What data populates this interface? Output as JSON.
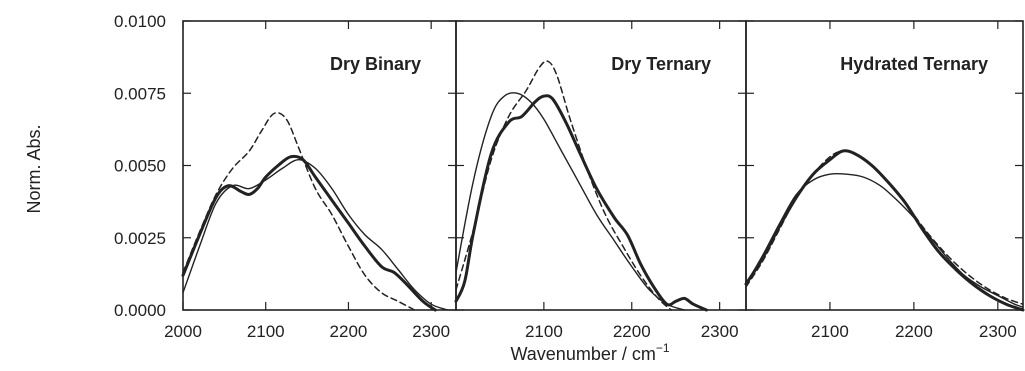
{
  "chart_data": {
    "type": "line",
    "ylabel": "Norm. Abs.",
    "xlabel": "Wavenumber / cm",
    "xlabel_sup": "−1",
    "ylim": [
      0,
      0.01
    ],
    "y_ticks": [
      "0.0000",
      "0.0025",
      "0.0050",
      "0.0075",
      "0.0100"
    ],
    "grid": false,
    "panels": [
      {
        "title": "Dry Binary",
        "xlim": [
          2000,
          2330
        ],
        "x_ticks": [
          "2000",
          "2100",
          "2200",
          "2300"
        ],
        "series": [
          {
            "style": "thin",
            "x": [
              2000,
              2020,
              2040,
              2060,
              2080,
              2100,
              2120,
              2140,
              2160,
              2180,
              2200,
              2220,
              2240,
              2260,
              2280,
              2300,
              2320
            ],
            "y": [
              0.0006,
              0.0022,
              0.0037,
              0.0043,
              0.0042,
              0.0045,
              0.0049,
              0.0052,
              0.0049,
              0.0042,
              0.0033,
              0.0026,
              0.0021,
              0.0014,
              0.0007,
              0.0002,
              0.0
            ]
          },
          {
            "style": "thick",
            "x": [
              2000,
              2020,
              2040,
              2055,
              2070,
              2080,
              2090,
              2100,
              2115,
              2130,
              2145,
              2160,
              2180,
              2200,
              2220,
              2240,
              2255,
              2270,
              2290,
              2305
            ],
            "y": [
              0.0012,
              0.0026,
              0.0039,
              0.0043,
              0.0041,
              0.004,
              0.0042,
              0.0046,
              0.005,
              0.0053,
              0.0052,
              0.0046,
              0.0038,
              0.003,
              0.0022,
              0.0015,
              0.0013,
              0.0009,
              0.0003,
              0.0
            ]
          },
          {
            "style": "dashed",
            "x": [
              2000,
              2020,
              2040,
              2060,
              2080,
              2095,
              2110,
              2125,
              2140,
              2160,
              2180,
              2200,
              2220,
              2240,
              2260,
              2280
            ],
            "y": [
              0.0013,
              0.0027,
              0.004,
              0.0049,
              0.0055,
              0.0062,
              0.0068,
              0.0066,
              0.0056,
              0.0042,
              0.0033,
              0.0022,
              0.0012,
              0.0006,
              0.0003,
              0.0
            ]
          }
        ]
      },
      {
        "title": "Dry Ternary",
        "xlim": [
          2000,
          2330
        ],
        "x_ticks": [
          "2100",
          "2200",
          "2300"
        ],
        "series": [
          {
            "style": "thin",
            "x": [
              2000,
              2020,
              2040,
              2055,
              2070,
              2085,
              2100,
              2120,
              2140,
              2160,
              2180,
              2200,
              2220,
              2240,
              2260
            ],
            "y": [
              0.0013,
              0.0045,
              0.0067,
              0.0074,
              0.0075,
              0.0072,
              0.0066,
              0.0055,
              0.0044,
              0.0033,
              0.0024,
              0.0015,
              0.0007,
              0.0002,
              0.0
            ]
          },
          {
            "style": "thick",
            "x": [
              2000,
              2010,
              2020,
              2040,
              2060,
              2075,
              2090,
              2100,
              2110,
              2125,
              2140,
              2160,
              2180,
              2195,
              2210,
              2225,
              2240,
              2250,
              2260,
              2270,
              2285
            ],
            "y": [
              0.0003,
              0.001,
              0.0027,
              0.0054,
              0.0065,
              0.0067,
              0.0072,
              0.0074,
              0.0073,
              0.0065,
              0.0055,
              0.0042,
              0.0032,
              0.0026,
              0.0016,
              0.0008,
              0.0002,
              0.0003,
              0.0004,
              0.0002,
              0.0
            ]
          },
          {
            "style": "dashed",
            "x": [
              2000,
              2020,
              2040,
              2060,
              2080,
              2095,
              2105,
              2115,
              2130,
              2150,
              2170,
              2190,
              2210,
              2230,
              2245
            ],
            "y": [
              0.0007,
              0.0028,
              0.0052,
              0.0067,
              0.0076,
              0.0084,
              0.0086,
              0.0081,
              0.0066,
              0.0048,
              0.0033,
              0.0022,
              0.0012,
              0.0004,
              0.0
            ]
          }
        ]
      },
      {
        "title": "Hydrated Ternary",
        "xlim": [
          2000,
          2330
        ],
        "x_ticks": [
          "2100",
          "2200",
          "2300"
        ],
        "series": [
          {
            "style": "thin",
            "x": [
              2000,
              2020,
              2040,
              2060,
              2080,
              2100,
              2120,
              2140,
              2160,
              2180,
              2200,
              2220,
              2240,
              2260,
              2280,
              2300,
              2320,
              2330
            ],
            "y": [
              0.0009,
              0.0019,
              0.003,
              0.004,
              0.0045,
              0.0047,
              0.0047,
              0.0046,
              0.0043,
              0.0038,
              0.0032,
              0.0025,
              0.0018,
              0.0012,
              0.0008,
              0.0005,
              0.0002,
              0.0001
            ]
          },
          {
            "style": "thick",
            "x": [
              2000,
              2020,
              2040,
              2060,
              2080,
              2100,
              2115,
              2130,
              2150,
              2170,
              2190,
              2210,
              2230,
              2250,
              2270,
              2290,
              2310,
              2330
            ],
            "y": [
              0.0009,
              0.0018,
              0.0029,
              0.0039,
              0.0047,
              0.0052,
              0.0055,
              0.0054,
              0.005,
              0.0044,
              0.0037,
              0.0028,
              0.002,
              0.0014,
              0.0009,
              0.0005,
              0.0002,
              0.0
            ]
          },
          {
            "style": "dashed",
            "x": [
              2000,
              2020,
              2040,
              2060,
              2080,
              2100,
              2115,
              2130,
              2150,
              2170,
              2190,
              2210,
              2230,
              2250,
              2270,
              2290,
              2310,
              2330
            ],
            "y": [
              0.0008,
              0.0017,
              0.0028,
              0.0039,
              0.0047,
              0.0053,
              0.0055,
              0.0054,
              0.005,
              0.0044,
              0.0037,
              0.0029,
              0.0022,
              0.0016,
              0.0011,
              0.0007,
              0.0004,
              0.0002
            ]
          }
        ]
      }
    ]
  }
}
